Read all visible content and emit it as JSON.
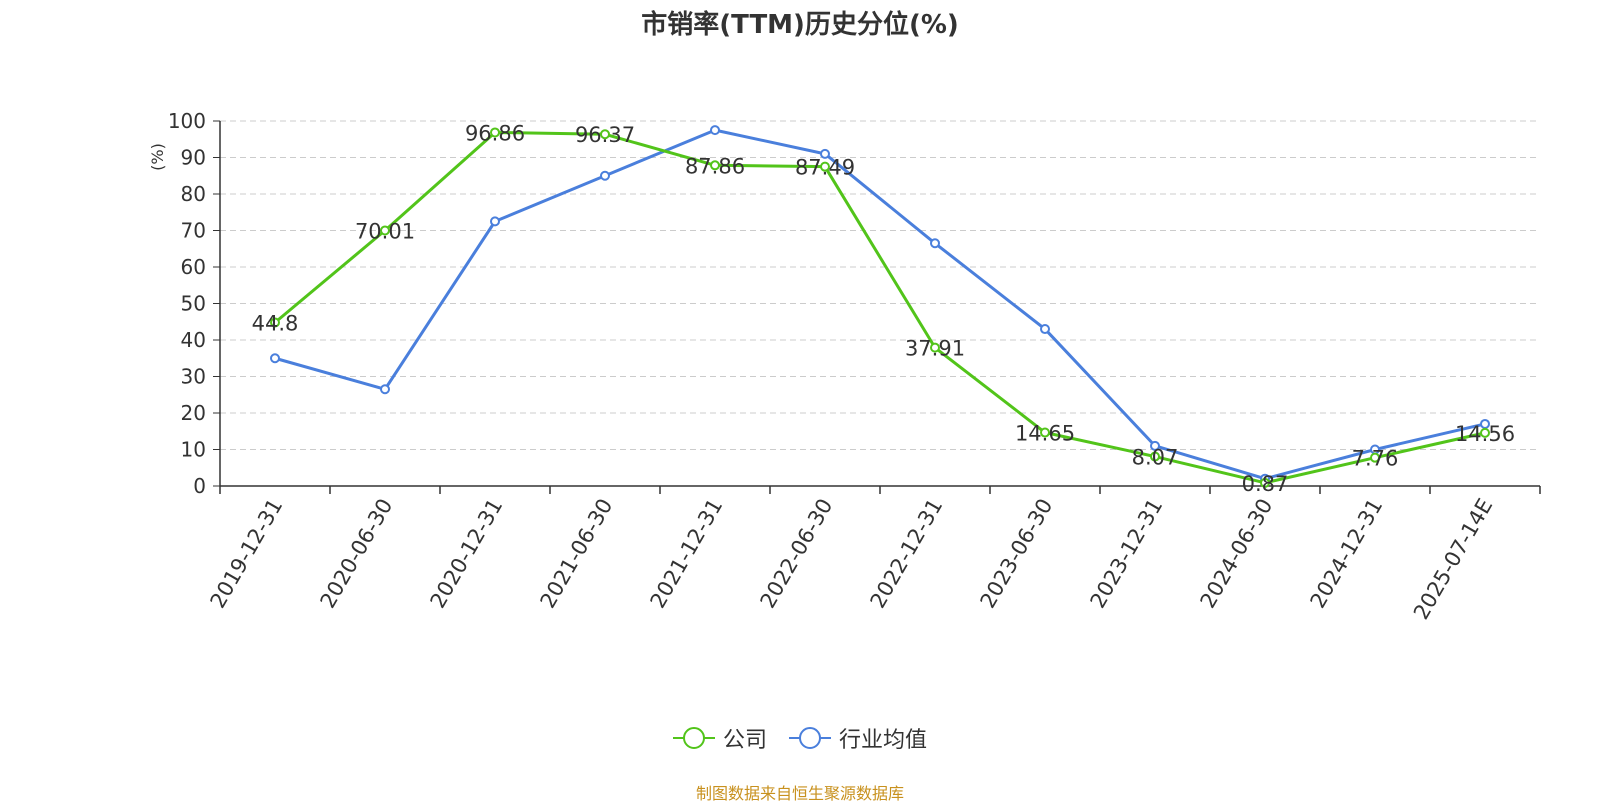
{
  "chart_data": {
    "type": "line",
    "title": "市销率(TTM)历史分位(%)",
    "ylabel": "(%)",
    "ylim": [
      0,
      100
    ],
    "yticks": [
      0,
      10,
      20,
      30,
      40,
      50,
      60,
      70,
      80,
      90,
      100
    ],
    "categories": [
      "2019-12-31",
      "2020-06-30",
      "2020-12-31",
      "2021-06-30",
      "2021-12-31",
      "2022-06-30",
      "2022-12-31",
      "2023-06-30",
      "2023-12-31",
      "2024-06-30",
      "2024-12-31",
      "2025-07-14E"
    ],
    "grid": true,
    "legend_position": "bottom",
    "series": [
      {
        "name": "公司",
        "color": "#52c41a",
        "values": [
          44.8,
          70.01,
          96.86,
          96.37,
          87.86,
          87.49,
          37.91,
          14.65,
          8.07,
          0.87,
          7.76,
          14.56
        ],
        "labels": [
          "44.8",
          "70.01",
          "96.86",
          "96.37",
          "87.86",
          "87.49",
          "37.91",
          "14.65",
          "8.07",
          "0.87",
          "7.76",
          "14.56"
        ]
      },
      {
        "name": "行业均值",
        "color": "#4a7fdc",
        "values": [
          35,
          26.5,
          72.5,
          85,
          97.5,
          91,
          66.5,
          43,
          11,
          2,
          10,
          17
        ]
      }
    ]
  },
  "legend": {
    "items": [
      "公司",
      "行业均值"
    ]
  },
  "source": "制图数据来自恒生聚源数据库"
}
